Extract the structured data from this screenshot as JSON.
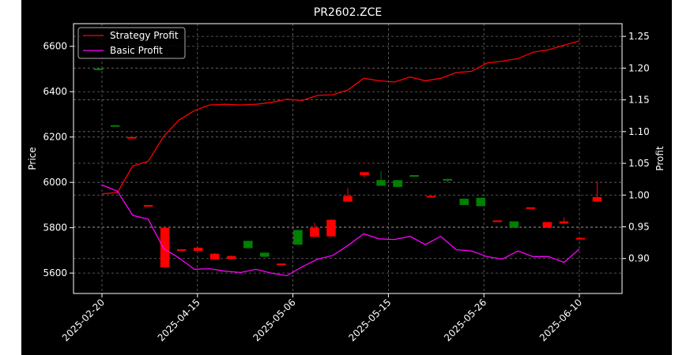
{
  "chart_data": {
    "type": "candlestick+line",
    "title": "PR2602.ZCE",
    "ylabel_left": "Price",
    "ylabel_right": "Profit",
    "ylim_left": [
      5510,
      6700
    ],
    "ylim_right": [
      0.845,
      1.27
    ],
    "yticks_left": [
      5600,
      5800,
      6000,
      6200,
      6400,
      6600
    ],
    "yticks_right": [
      0.9,
      0.95,
      1.0,
      1.05,
      1.1,
      1.15,
      1.2,
      1.25
    ],
    "ytick_labels_right": [
      "0.90",
      "0.95",
      "1.00",
      "1.05",
      "1.10",
      "1.15",
      "1.20",
      "1.25"
    ],
    "xtick_labels": [
      "2025-02-20",
      "2025-04-15",
      "2025-05-06",
      "2025-05-15",
      "2025-05-26",
      "2025-06-10"
    ],
    "xtick_positions": [
      0,
      5,
      10,
      15,
      20,
      25
    ],
    "x_count": 26,
    "grid": true,
    "legend_position": "top-left",
    "candles": [
      {
        "i": 1,
        "o": 6500,
        "c": 6502,
        "h": 6502,
        "l": 6500
      },
      {
        "i": 2,
        "o": 6250,
        "c": 6252,
        "h": 6252,
        "l": 6250
      },
      {
        "i": 3,
        "o": 6200,
        "c": 6198,
        "h": 6200,
        "l": 6198
      },
      {
        "i": 4,
        "o": 5900,
        "c": 5898,
        "h": 5900,
        "l": 5898
      },
      {
        "i": 5,
        "o": 5800,
        "c": 5625,
        "h": 5800,
        "l": 5625
      },
      {
        "i": 6,
        "o": 5705,
        "c": 5698,
        "h": 5705,
        "l": 5698
      },
      {
        "i": 7,
        "o": 5712,
        "c": 5698,
        "h": 5712,
        "l": 5698
      },
      {
        "i": 8,
        "o": 5685,
        "c": 5660,
        "h": 5688,
        "l": 5658
      },
      {
        "i": 9,
        "o": 5675,
        "c": 5662,
        "h": 5678,
        "l": 5660
      },
      {
        "i": 10,
        "o": 5710,
        "c": 5742,
        "h": 5742,
        "l": 5710
      },
      {
        "i": 11,
        "o": 5672,
        "c": 5690,
        "h": 5690,
        "l": 5672
      },
      {
        "i": 12,
        "o": 5642,
        "c": 5640,
        "h": 5642,
        "l": 5640
      },
      {
        "i": 13,
        "o": 5725,
        "c": 5790,
        "h": 5790,
        "l": 5725
      },
      {
        "i": 14,
        "o": 5800,
        "c": 5760,
        "h": 5822,
        "l": 5758
      },
      {
        "i": 15,
        "o": 5835,
        "c": 5762,
        "h": 5838,
        "l": 5758
      },
      {
        "i": 16,
        "o": 5940,
        "c": 5915,
        "h": 5975,
        "l": 5915
      },
      {
        "i": 17,
        "o": 6045,
        "c": 6032,
        "h": 6045,
        "l": 6020
      },
      {
        "i": 18,
        "o": 5985,
        "c": 6010,
        "h": 6050,
        "l": 5985
      },
      {
        "i": 19,
        "o": 5980,
        "c": 6010,
        "h": 6010,
        "l": 5980
      },
      {
        "i": 20,
        "o": 6025,
        "c": 6032,
        "h": 6032,
        "l": 6025
      },
      {
        "i": 21,
        "o": 5940,
        "c": 5938,
        "h": 5940,
        "l": 5938
      },
      {
        "i": 22,
        "o": 6010,
        "c": 6015,
        "h": 6015,
        "l": 6000
      },
      {
        "i": 23,
        "o": 5900,
        "c": 5928,
        "h": 5928,
        "l": 5900
      },
      {
        "i": 24,
        "o": 5895,
        "c": 5932,
        "h": 5932,
        "l": 5895
      },
      {
        "i": 25,
        "o": 5832,
        "c": 5830,
        "h": 5832,
        "l": 5830
      },
      {
        "i": 26,
        "o": 5800,
        "c": 5828,
        "h": 5828,
        "l": 5800
      },
      {
        "i": 27,
        "o": 5890,
        "c": 5888,
        "h": 5890,
        "l": 5888
      },
      {
        "i": 28,
        "o": 5825,
        "c": 5800,
        "h": 5825,
        "l": 5800
      },
      {
        "i": 29,
        "o": 5828,
        "c": 5818,
        "h": 5845,
        "l": 5818
      },
      {
        "i": 30,
        "o": 5755,
        "c": 5753,
        "h": 5755,
        "l": 5753
      },
      {
        "i": 31,
        "o": 5935,
        "c": 5915,
        "h": 6005,
        "l": 5915
      }
    ],
    "candle_x_count": 33,
    "up_color": "#008000",
    "down_color": "#ff0000",
    "series": [
      {
        "name": "Strategy Profit",
        "color": "#ff0000",
        "values": [
          1.002,
          1.004,
          1.046,
          1.053,
          1.092,
          1.118,
          1.133,
          1.142,
          1.143,
          1.142,
          1.143,
          1.146,
          1.151,
          1.149,
          1.157,
          1.158,
          1.166,
          1.184,
          1.18,
          1.178,
          1.186,
          1.18,
          1.184,
          1.193,
          1.195,
          1.208,
          1.211,
          1.215,
          1.225,
          1.229,
          1.236,
          1.243
        ]
      },
      {
        "name": "Basic Profit",
        "color": "#ff00ff",
        "values": [
          1.016,
          1.006,
          0.968,
          0.962,
          0.916,
          0.901,
          0.883,
          0.884,
          0.88,
          0.878,
          0.883,
          0.877,
          0.873,
          0.887,
          0.899,
          0.905,
          0.921,
          0.939,
          0.931,
          0.93,
          0.935,
          0.922,
          0.935,
          0.914,
          0.912,
          0.903,
          0.899,
          0.912,
          0.903,
          0.903,
          0.894,
          0.915
        ]
      }
    ]
  }
}
